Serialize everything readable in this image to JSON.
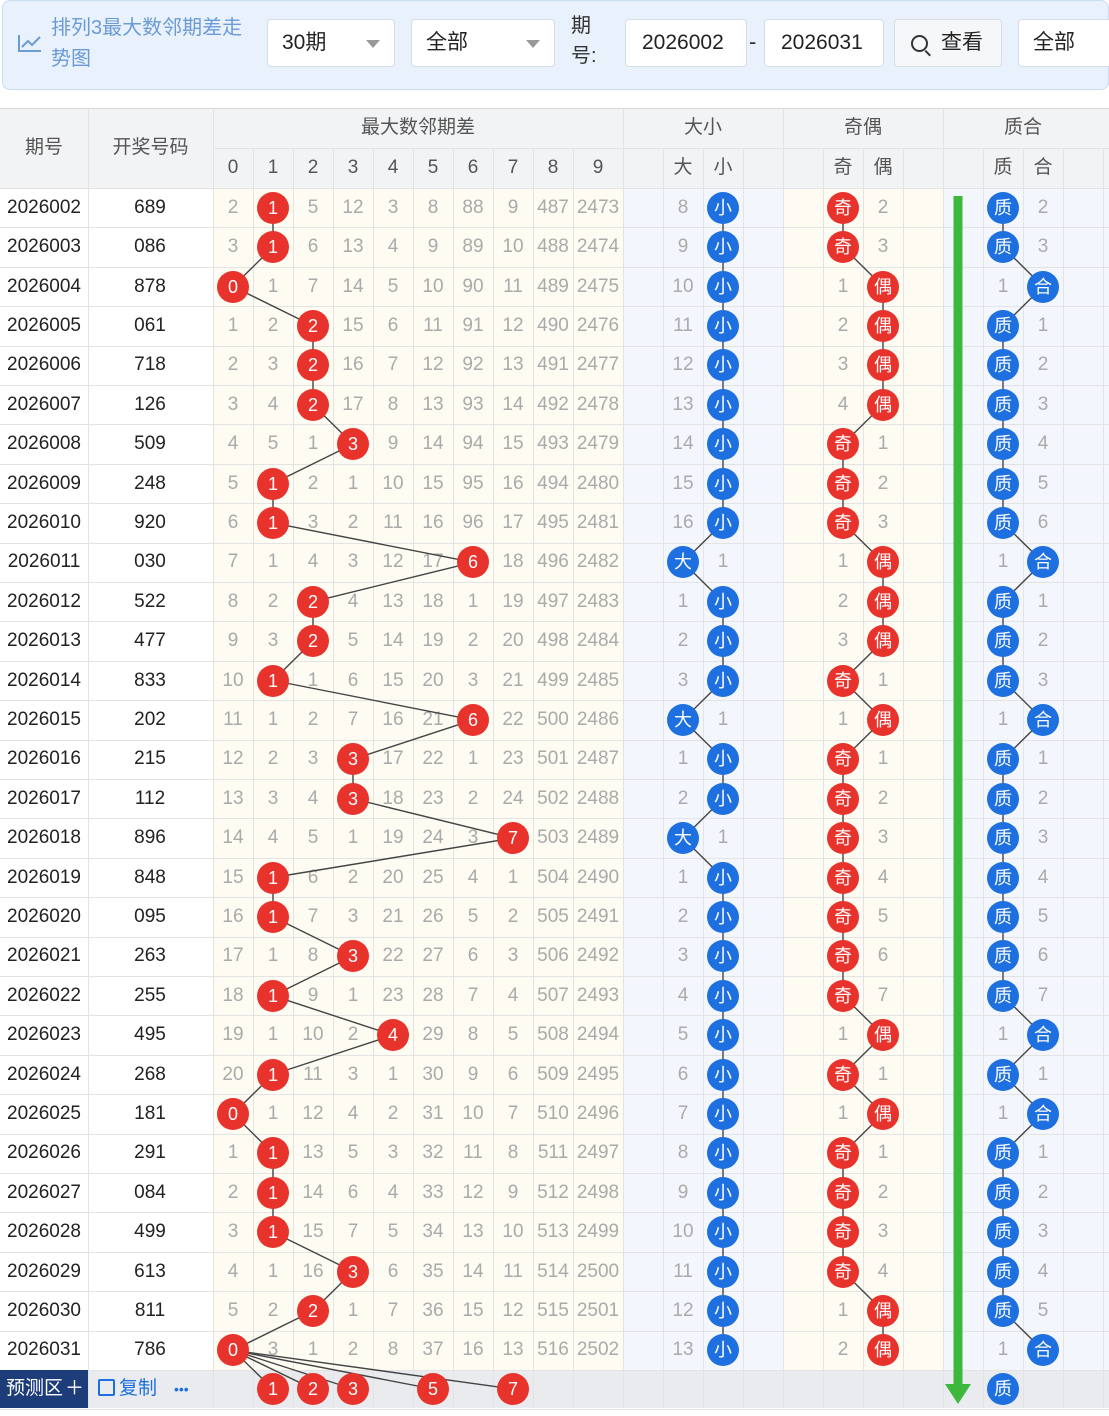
{
  "toolbar": {
    "title": "排列3最大数邻期差走势图",
    "periods_select": "30期",
    "filter_select": "全部",
    "qihao_label": "期号:",
    "range_from": "2026002",
    "range_dash": "-",
    "range_to": "2026031",
    "view_button": "查看",
    "extra_select": "全部"
  },
  "headers": {
    "issue": "期号",
    "draw_number": "开奖号码",
    "group_diff": "最大数邻期差",
    "group_size": "大小",
    "group_parity": "奇偶",
    "group_prime": "质合",
    "digits": [
      "0",
      "1",
      "2",
      "3",
      "4",
      "5",
      "6",
      "7",
      "8",
      "9"
    ],
    "size_cols": [
      "大",
      "小"
    ],
    "parity_cols": [
      "奇",
      "偶"
    ],
    "prime_cols": [
      "质",
      "合"
    ]
  },
  "rows": [
    {
      "issue": "2026002",
      "num": "689",
      "diff": [
        "2",
        "1",
        "5",
        "12",
        "3",
        "8",
        "88",
        "9",
        "487",
        "2473"
      ],
      "hit": 1,
      "size": [
        "8",
        "小"
      ],
      "size_hit": 1,
      "par": [
        "奇",
        "2"
      ],
      "par_hit": 0,
      "prime": [
        "质",
        "2"
      ],
      "prime_hit": 0
    },
    {
      "issue": "2026003",
      "num": "086",
      "diff": [
        "3",
        "1",
        "6",
        "13",
        "4",
        "9",
        "89",
        "10",
        "488",
        "2474"
      ],
      "hit": 1,
      "size": [
        "9",
        "小"
      ],
      "size_hit": 1,
      "par": [
        "奇",
        "3"
      ],
      "par_hit": 0,
      "prime": [
        "质",
        "3"
      ],
      "prime_hit": 0
    },
    {
      "issue": "2026004",
      "num": "878",
      "diff": [
        "0",
        "1",
        "7",
        "14",
        "5",
        "10",
        "90",
        "11",
        "489",
        "2475"
      ],
      "hit": 0,
      "size": [
        "10",
        "小"
      ],
      "size_hit": 1,
      "par": [
        "1",
        "偶"
      ],
      "par_hit": 1,
      "prime": [
        "1",
        "合"
      ],
      "prime_hit": 1
    },
    {
      "issue": "2026005",
      "num": "061",
      "diff": [
        "1",
        "2",
        "2",
        "15",
        "6",
        "11",
        "91",
        "12",
        "490",
        "2476"
      ],
      "hit": 2,
      "size": [
        "11",
        "小"
      ],
      "size_hit": 1,
      "par": [
        "2",
        "偶"
      ],
      "par_hit": 1,
      "prime": [
        "质",
        "1"
      ],
      "prime_hit": 0
    },
    {
      "issue": "2026006",
      "num": "718",
      "diff": [
        "2",
        "3",
        "2",
        "16",
        "7",
        "12",
        "92",
        "13",
        "491",
        "2477"
      ],
      "hit": 2,
      "size": [
        "12",
        "小"
      ],
      "size_hit": 1,
      "par": [
        "3",
        "偶"
      ],
      "par_hit": 1,
      "prime": [
        "质",
        "2"
      ],
      "prime_hit": 0
    },
    {
      "issue": "2026007",
      "num": "126",
      "diff": [
        "3",
        "4",
        "2",
        "17",
        "8",
        "13",
        "93",
        "14",
        "492",
        "2478"
      ],
      "hit": 2,
      "size": [
        "13",
        "小"
      ],
      "size_hit": 1,
      "par": [
        "4",
        "偶"
      ],
      "par_hit": 1,
      "prime": [
        "质",
        "3"
      ],
      "prime_hit": 0
    },
    {
      "issue": "2026008",
      "num": "509",
      "diff": [
        "4",
        "5",
        "1",
        "3",
        "9",
        "14",
        "94",
        "15",
        "493",
        "2479"
      ],
      "hit": 3,
      "size": [
        "14",
        "小"
      ],
      "size_hit": 1,
      "par": [
        "奇",
        "1"
      ],
      "par_hit": 0,
      "prime": [
        "质",
        "4"
      ],
      "prime_hit": 0
    },
    {
      "issue": "2026009",
      "num": "248",
      "diff": [
        "5",
        "1",
        "2",
        "1",
        "10",
        "15",
        "95",
        "16",
        "494",
        "2480"
      ],
      "hit": 1,
      "size": [
        "15",
        "小"
      ],
      "size_hit": 1,
      "par": [
        "奇",
        "2"
      ],
      "par_hit": 0,
      "prime": [
        "质",
        "5"
      ],
      "prime_hit": 0
    },
    {
      "issue": "2026010",
      "num": "920",
      "diff": [
        "6",
        "1",
        "3",
        "2",
        "11",
        "16",
        "96",
        "17",
        "495",
        "2481"
      ],
      "hit": 1,
      "size": [
        "16",
        "小"
      ],
      "size_hit": 1,
      "par": [
        "奇",
        "3"
      ],
      "par_hit": 0,
      "prime": [
        "质",
        "6"
      ],
      "prime_hit": 0
    },
    {
      "issue": "2026011",
      "num": "030",
      "diff": [
        "7",
        "1",
        "4",
        "3",
        "12",
        "17",
        "6",
        "18",
        "496",
        "2482"
      ],
      "hit": 6,
      "size": [
        "大",
        "1"
      ],
      "size_hit": 0,
      "par": [
        "1",
        "偶"
      ],
      "par_hit": 1,
      "prime": [
        "1",
        "合"
      ],
      "prime_hit": 1
    },
    {
      "issue": "2026012",
      "num": "522",
      "diff": [
        "8",
        "2",
        "2",
        "4",
        "13",
        "18",
        "1",
        "19",
        "497",
        "2483"
      ],
      "hit": 2,
      "size": [
        "1",
        "小"
      ],
      "size_hit": 1,
      "par": [
        "2",
        "偶"
      ],
      "par_hit": 1,
      "prime": [
        "质",
        "1"
      ],
      "prime_hit": 0
    },
    {
      "issue": "2026013",
      "num": "477",
      "diff": [
        "9",
        "3",
        "2",
        "5",
        "14",
        "19",
        "2",
        "20",
        "498",
        "2484"
      ],
      "hit": 2,
      "size": [
        "2",
        "小"
      ],
      "size_hit": 1,
      "par": [
        "3",
        "偶"
      ],
      "par_hit": 1,
      "prime": [
        "质",
        "2"
      ],
      "prime_hit": 0
    },
    {
      "issue": "2026014",
      "num": "833",
      "diff": [
        "10",
        "1",
        "1",
        "6",
        "15",
        "20",
        "3",
        "21",
        "499",
        "2485"
      ],
      "hit": 1,
      "size": [
        "3",
        "小"
      ],
      "size_hit": 1,
      "par": [
        "奇",
        "1"
      ],
      "par_hit": 0,
      "prime": [
        "质",
        "3"
      ],
      "prime_hit": 0
    },
    {
      "issue": "2026015",
      "num": "202",
      "diff": [
        "11",
        "1",
        "2",
        "7",
        "16",
        "21",
        "6",
        "22",
        "500",
        "2486"
      ],
      "hit": 6,
      "size": [
        "大",
        "1"
      ],
      "size_hit": 0,
      "par": [
        "1",
        "偶"
      ],
      "par_hit": 1,
      "prime": [
        "1",
        "合"
      ],
      "prime_hit": 1
    },
    {
      "issue": "2026016",
      "num": "215",
      "diff": [
        "12",
        "2",
        "3",
        "3",
        "17",
        "22",
        "1",
        "23",
        "501",
        "2487"
      ],
      "hit": 3,
      "size": [
        "1",
        "小"
      ],
      "size_hit": 1,
      "par": [
        "奇",
        "1"
      ],
      "par_hit": 0,
      "prime": [
        "质",
        "1"
      ],
      "prime_hit": 0
    },
    {
      "issue": "2026017",
      "num": "112",
      "diff": [
        "13",
        "3",
        "4",
        "3",
        "18",
        "23",
        "2",
        "24",
        "502",
        "2488"
      ],
      "hit": 3,
      "size": [
        "2",
        "小"
      ],
      "size_hit": 1,
      "par": [
        "奇",
        "2"
      ],
      "par_hit": 0,
      "prime": [
        "质",
        "2"
      ],
      "prime_hit": 0
    },
    {
      "issue": "2026018",
      "num": "896",
      "diff": [
        "14",
        "4",
        "5",
        "1",
        "19",
        "24",
        "3",
        "7",
        "503",
        "2489"
      ],
      "hit": 7,
      "size": [
        "大",
        "1"
      ],
      "size_hit": 0,
      "par": [
        "奇",
        "3"
      ],
      "par_hit": 0,
      "prime": [
        "质",
        "3"
      ],
      "prime_hit": 0
    },
    {
      "issue": "2026019",
      "num": "848",
      "diff": [
        "15",
        "1",
        "6",
        "2",
        "20",
        "25",
        "4",
        "1",
        "504",
        "2490"
      ],
      "hit": 1,
      "size": [
        "1",
        "小"
      ],
      "size_hit": 1,
      "par": [
        "奇",
        "4"
      ],
      "par_hit": 0,
      "prime": [
        "质",
        "4"
      ],
      "prime_hit": 0
    },
    {
      "issue": "2026020",
      "num": "095",
      "diff": [
        "16",
        "1",
        "7",
        "3",
        "21",
        "26",
        "5",
        "2",
        "505",
        "2491"
      ],
      "hit": 1,
      "size": [
        "2",
        "小"
      ],
      "size_hit": 1,
      "par": [
        "奇",
        "5"
      ],
      "par_hit": 0,
      "prime": [
        "质",
        "5"
      ],
      "prime_hit": 0
    },
    {
      "issue": "2026021",
      "num": "263",
      "diff": [
        "17",
        "1",
        "8",
        "3",
        "22",
        "27",
        "6",
        "3",
        "506",
        "2492"
      ],
      "hit": 3,
      "size": [
        "3",
        "小"
      ],
      "size_hit": 1,
      "par": [
        "奇",
        "6"
      ],
      "par_hit": 0,
      "prime": [
        "质",
        "6"
      ],
      "prime_hit": 0
    },
    {
      "issue": "2026022",
      "num": "255",
      "diff": [
        "18",
        "1",
        "9",
        "1",
        "23",
        "28",
        "7",
        "4",
        "507",
        "2493"
      ],
      "hit": 1,
      "size": [
        "4",
        "小"
      ],
      "size_hit": 1,
      "par": [
        "奇",
        "7"
      ],
      "par_hit": 0,
      "prime": [
        "质",
        "7"
      ],
      "prime_hit": 0
    },
    {
      "issue": "2026023",
      "num": "495",
      "diff": [
        "19",
        "1",
        "10",
        "2",
        "4",
        "29",
        "8",
        "5",
        "508",
        "2494"
      ],
      "hit": 4,
      "size": [
        "5",
        "小"
      ],
      "size_hit": 1,
      "par": [
        "1",
        "偶"
      ],
      "par_hit": 1,
      "prime": [
        "1",
        "合"
      ],
      "prime_hit": 1
    },
    {
      "issue": "2026024",
      "num": "268",
      "diff": [
        "20",
        "1",
        "11",
        "3",
        "1",
        "30",
        "9",
        "6",
        "509",
        "2495"
      ],
      "hit": 1,
      "size": [
        "6",
        "小"
      ],
      "size_hit": 1,
      "par": [
        "奇",
        "1"
      ],
      "par_hit": 0,
      "prime": [
        "质",
        "1"
      ],
      "prime_hit": 0
    },
    {
      "issue": "2026025",
      "num": "181",
      "diff": [
        "0",
        "1",
        "12",
        "4",
        "2",
        "31",
        "10",
        "7",
        "510",
        "2496"
      ],
      "hit": 0,
      "size": [
        "7",
        "小"
      ],
      "size_hit": 1,
      "par": [
        "1",
        "偶"
      ],
      "par_hit": 1,
      "prime": [
        "1",
        "合"
      ],
      "prime_hit": 1
    },
    {
      "issue": "2026026",
      "num": "291",
      "diff": [
        "1",
        "1",
        "13",
        "5",
        "3",
        "32",
        "11",
        "8",
        "511",
        "2497"
      ],
      "hit": 1,
      "size": [
        "8",
        "小"
      ],
      "size_hit": 1,
      "par": [
        "奇",
        "1"
      ],
      "par_hit": 0,
      "prime": [
        "质",
        "1"
      ],
      "prime_hit": 0
    },
    {
      "issue": "2026027",
      "num": "084",
      "diff": [
        "2",
        "1",
        "14",
        "6",
        "4",
        "33",
        "12",
        "9",
        "512",
        "2498"
      ],
      "hit": 1,
      "size": [
        "9",
        "小"
      ],
      "size_hit": 1,
      "par": [
        "奇",
        "2"
      ],
      "par_hit": 0,
      "prime": [
        "质",
        "2"
      ],
      "prime_hit": 0
    },
    {
      "issue": "2026028",
      "num": "499",
      "diff": [
        "3",
        "1",
        "15",
        "7",
        "5",
        "34",
        "13",
        "10",
        "513",
        "2499"
      ],
      "hit": 1,
      "size": [
        "10",
        "小"
      ],
      "size_hit": 1,
      "par": [
        "奇",
        "3"
      ],
      "par_hit": 0,
      "prime": [
        "质",
        "3"
      ],
      "prime_hit": 0
    },
    {
      "issue": "2026029",
      "num": "613",
      "diff": [
        "4",
        "1",
        "16",
        "3",
        "6",
        "35",
        "14",
        "11",
        "514",
        "2500"
      ],
      "hit": 3,
      "size": [
        "11",
        "小"
      ],
      "size_hit": 1,
      "par": [
        "奇",
        "4"
      ],
      "par_hit": 0,
      "prime": [
        "质",
        "4"
      ],
      "prime_hit": 0
    },
    {
      "issue": "2026030",
      "num": "811",
      "diff": [
        "5",
        "2",
        "2",
        "1",
        "7",
        "36",
        "15",
        "12",
        "515",
        "2501"
      ],
      "hit": 2,
      "size": [
        "12",
        "小"
      ],
      "size_hit": 1,
      "par": [
        "1",
        "偶"
      ],
      "par_hit": 1,
      "prime": [
        "质",
        "5"
      ],
      "prime_hit": 0
    },
    {
      "issue": "2026031",
      "num": "786",
      "diff": [
        "0",
        "3",
        "1",
        "2",
        "8",
        "37",
        "16",
        "13",
        "516",
        "2502"
      ],
      "hit": 0,
      "size": [
        "13",
        "小"
      ],
      "size_hit": 1,
      "par": [
        "2",
        "偶"
      ],
      "par_hit": 1,
      "prime": [
        "1",
        "合"
      ],
      "prime_hit": 1
    }
  ],
  "predict": {
    "label": "预测区",
    "plus": "＋",
    "copy": "复制",
    "more": "•••",
    "balls": [
      {
        "col": 1,
        "text": "1"
      },
      {
        "col": 2,
        "text": "2"
      },
      {
        "col": 3,
        "text": "3"
      },
      {
        "col": 5,
        "text": "5"
      },
      {
        "col": 7,
        "text": "7"
      }
    ],
    "prime_ball": "质"
  },
  "colors": {
    "red": "#e8322c",
    "blue": "#1e6fe0",
    "green_arrow": "#3cb83c",
    "header_bg": "#f2f3f5",
    "toolbar_bg": "#e8f1fc"
  }
}
